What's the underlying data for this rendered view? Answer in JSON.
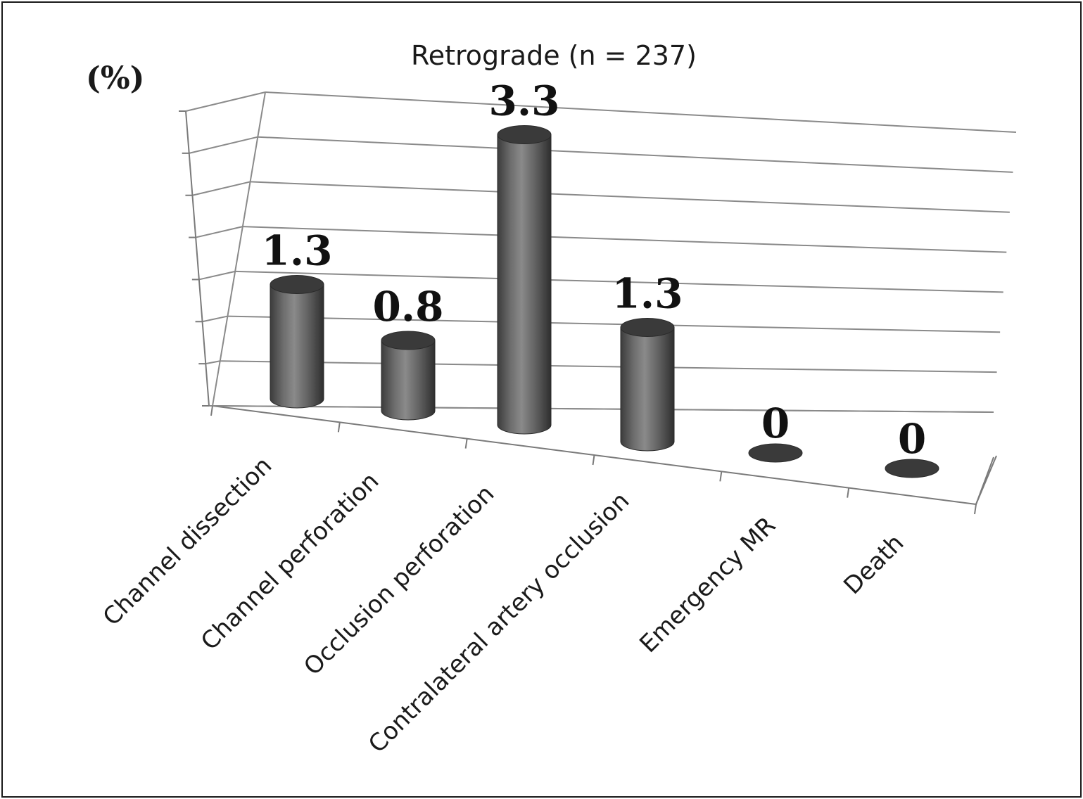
{
  "chart_data": {
    "type": "bar",
    "style": "3d-cylinder",
    "title": "Retrograde (n = 237)",
    "ylabel": "(%)",
    "categories": [
      "Channel dissection",
      "Channel perforation",
      "Occlusion perforation",
      "Contralateral artery occlusion",
      "Emergency MR",
      "Death"
    ],
    "values": [
      1.3,
      0.8,
      3.3,
      1.3,
      0,
      0
    ],
    "data_labels": [
      "1.3",
      "0.8",
      "3.3",
      "1.3",
      "0",
      "0"
    ],
    "ylim": [
      0,
      3.5
    ],
    "ytick_step": 0.5,
    "ytick_labels_shown": false,
    "grid": true,
    "legend": "none",
    "colors": {
      "bar_body": "#6a6a6a",
      "bar_top": "#3a3a3a",
      "grid": "#8a8a8a"
    }
  }
}
